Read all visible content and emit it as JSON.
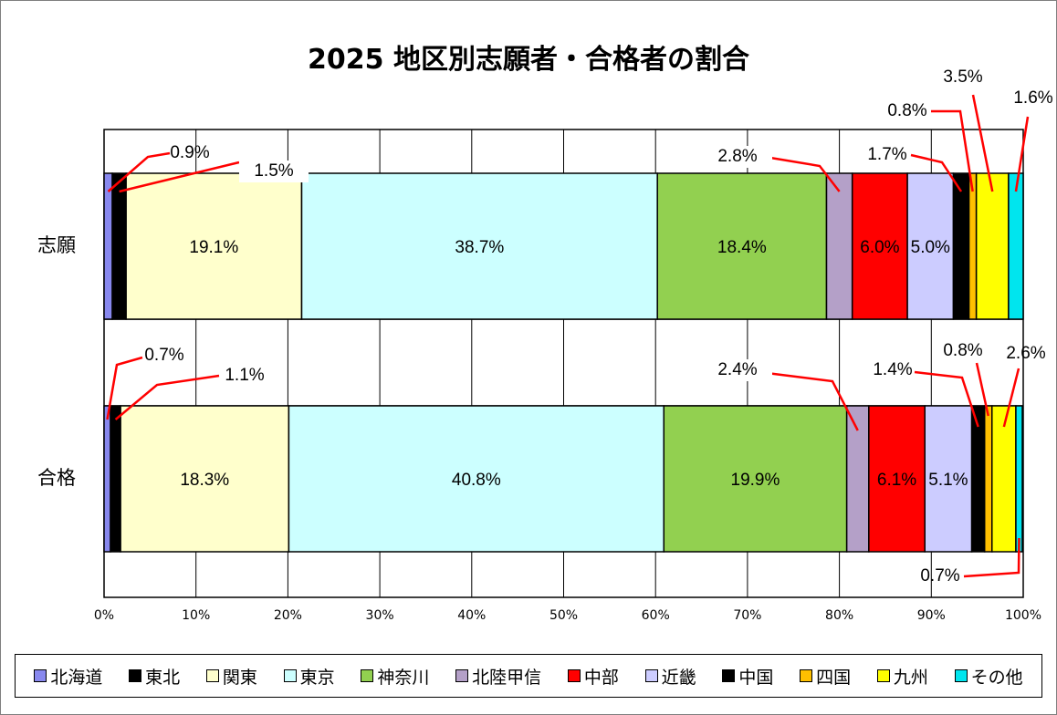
{
  "chart_data": {
    "type": "bar",
    "orientation": "horizontal",
    "stacked": true,
    "percent": true,
    "title": "2025 地区別志願者・合格者の割合",
    "categories": [
      "志願",
      "合格"
    ],
    "xlim": [
      0,
      100
    ],
    "xticks": [
      "0%",
      "10%",
      "20%",
      "30%",
      "40%",
      "50%",
      "60%",
      "70%",
      "80%",
      "90%",
      "100%"
    ],
    "grid": "vertical",
    "legend": "bottom",
    "series": [
      {
        "name": "北海道",
        "color": "#8888ee",
        "values": [
          0.9,
          0.7
        ],
        "labels": [
          "0.9%",
          "0.7%"
        ]
      },
      {
        "name": "東北",
        "color": "#000000",
        "values": [
          1.5,
          1.1
        ],
        "labels": [
          "1.5%",
          "1.1%"
        ]
      },
      {
        "name": "関東",
        "color": "#ffffcc",
        "values": [
          19.1,
          18.3
        ],
        "labels": [
          "19.1%",
          "18.3%"
        ]
      },
      {
        "name": "東京",
        "color": "#ccffff",
        "values": [
          38.7,
          40.8
        ],
        "labels": [
          "38.7%",
          "40.8%"
        ]
      },
      {
        "name": "神奈川",
        "color": "#92d050",
        "values": [
          18.4,
          19.9
        ],
        "labels": [
          "18.4%",
          "19.9%"
        ]
      },
      {
        "name": "北陸甲信",
        "color": "#b4a0c8",
        "values": [
          2.8,
          2.4
        ],
        "labels": [
          "2.8%",
          "2.4%"
        ]
      },
      {
        "name": "中部",
        "color": "#ff0000",
        "values": [
          6.0,
          6.1
        ],
        "labels": [
          "6.0%",
          "6.1%"
        ]
      },
      {
        "name": "近畿",
        "color": "#ccccff",
        "values": [
          5.0,
          5.1
        ],
        "labels": [
          "5.0%",
          "5.1%"
        ]
      },
      {
        "name": "中国",
        "color": "#000000",
        "values": [
          1.7,
          1.4
        ],
        "labels": [
          "1.7%",
          "1.4%"
        ]
      },
      {
        "name": "四国",
        "color": "#ffc000",
        "values": [
          0.8,
          0.8
        ],
        "labels": [
          "0.8%",
          "0.8%"
        ]
      },
      {
        "name": "九州",
        "color": "#ffff00",
        "values": [
          3.5,
          2.6
        ],
        "labels": [
          "3.5%",
          "2.6%"
        ]
      },
      {
        "name": "その他",
        "color": "#00e5ee",
        "values": [
          1.6,
          0.7
        ],
        "labels": [
          "1.6%",
          "0.7%"
        ]
      }
    ]
  }
}
